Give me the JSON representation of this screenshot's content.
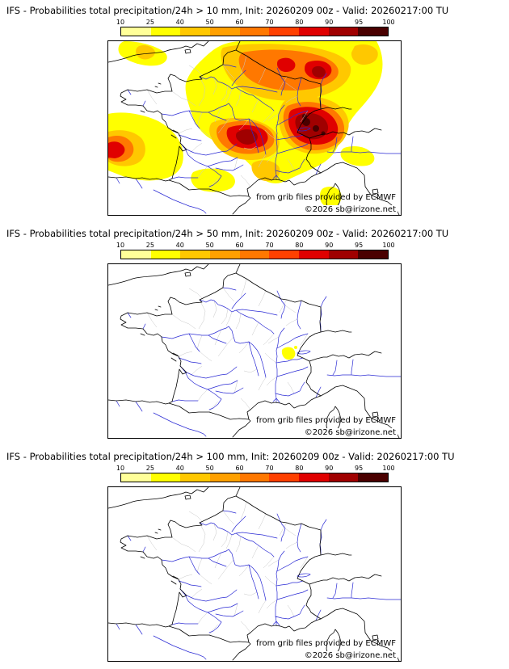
{
  "colorbar": {
    "ticks": [
      "10",
      "25",
      "40",
      "50",
      "60",
      "70",
      "80",
      "90",
      "95",
      "100"
    ],
    "colors": [
      "#FFFF99",
      "#FFFF00",
      "#FFC800",
      "#FFA000",
      "#FF7800",
      "#FF4000",
      "#E00000",
      "#A00000",
      "#4A0000"
    ]
  },
  "map_colors": {
    "coast": "#000000",
    "river": "#2A2AD4",
    "department": "#C8C8C8"
  },
  "attribution": {
    "line1": "from grib files provided by ECMWF",
    "line2": "©2026 sb@irizone.net"
  },
  "panels": [
    {
      "threshold": "10 mm",
      "title": "IFS - Probabilities total precipitation/24h > 10 mm, Init: 20260209 00z - Valid: 20260217:00 TU"
    },
    {
      "threshold": "50 mm",
      "title": "IFS - Probabilities total precipitation/24h > 50 mm, Init: 20260209 00z - Valid: 20260217:00 TU"
    },
    {
      "threshold": "100 mm",
      "title": "IFS - Probabilities total precipitation/24h > 100 mm, Init: 20260209 00z - Valid: 20260217:00 TU"
    }
  ]
}
